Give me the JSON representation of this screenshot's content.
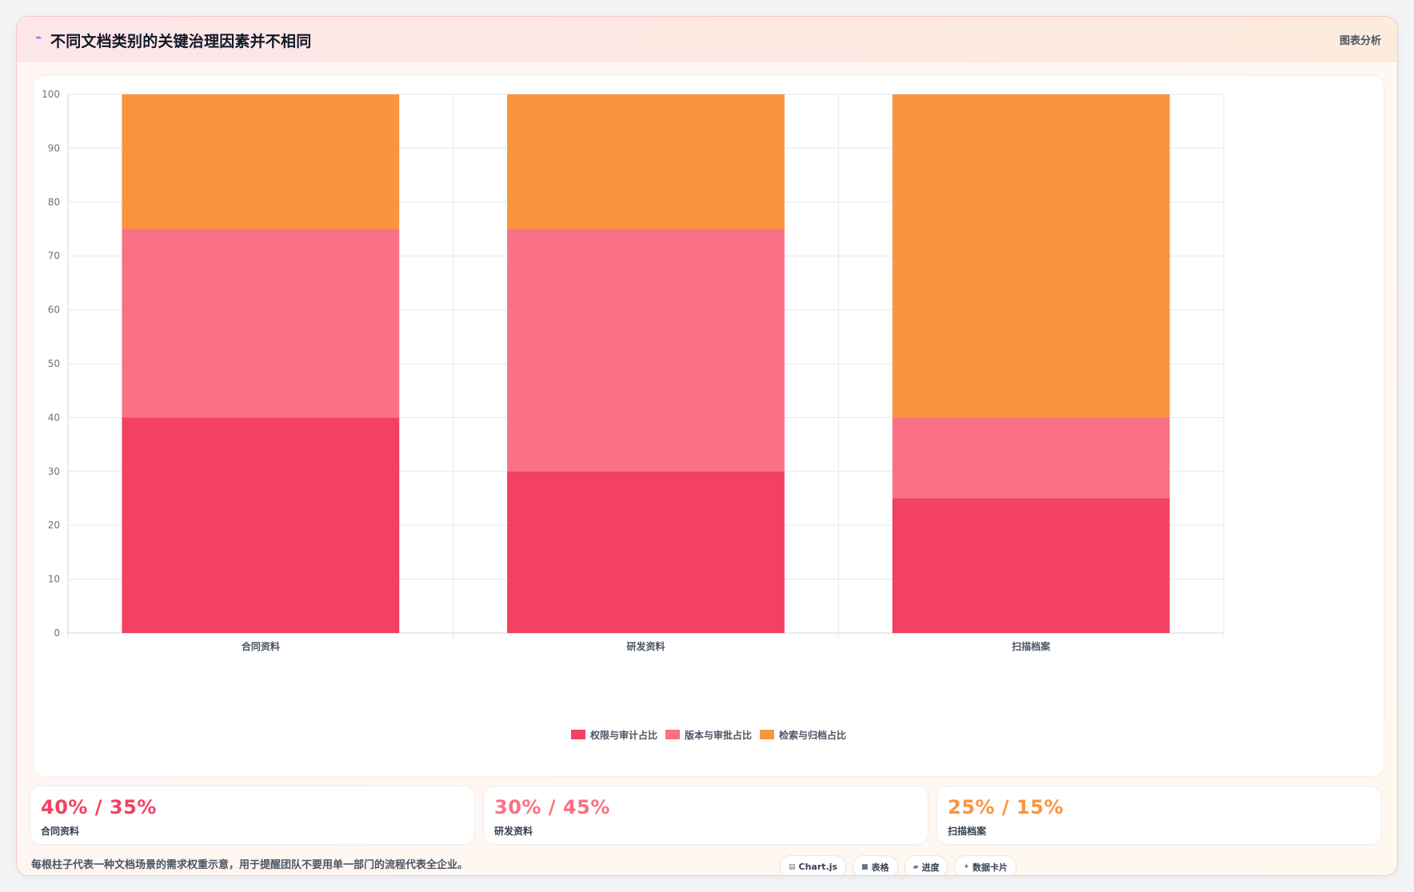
{
  "header": {
    "icon": "chart-line-icon",
    "title": "不同文档类别的关键治理因素并不相同",
    "tag": "图表分析"
  },
  "chart_data": {
    "type": "bar",
    "stacked": true,
    "categories": [
      "合同资料",
      "研发资料",
      "扫描档案"
    ],
    "series": [
      {
        "name": "权限与审计占比",
        "values": [
          40,
          30,
          25
        ],
        "color": "#f24162"
      },
      {
        "name": "版本与审批占比",
        "values": [
          35,
          45,
          15
        ],
        "color": "#fa7185"
      },
      {
        "name": "检索与归档占比",
        "values": [
          25,
          25,
          60
        ],
        "color": "#fa943f"
      }
    ],
    "ylim": [
      0,
      100
    ],
    "yticks": [
      0,
      10,
      20,
      30,
      40,
      50,
      60,
      70,
      80,
      90,
      100
    ],
    "grid": true,
    "legend_position": "bottom"
  },
  "stats": [
    {
      "value": "40% / 35%",
      "label": "合同资料",
      "color": "#f24162"
    },
    {
      "value": "30% / 45%",
      "label": "研发资料",
      "color": "#fa7185"
    },
    {
      "value": "25% / 15%",
      "label": "扫描档案",
      "color": "#fa943f"
    }
  ],
  "footnote": "每根柱子代表一种文档场景的需求权重示意，用于提醒团队不要用单一部门的流程代表全企业。",
  "pills": [
    {
      "icon": "chart-icon",
      "label": "Chart.js"
    },
    {
      "icon": "table-icon",
      "label": "表格"
    },
    {
      "icon": "progress-icon",
      "label": "进度"
    },
    {
      "icon": "sparkle-icon",
      "label": "数据卡片"
    }
  ]
}
